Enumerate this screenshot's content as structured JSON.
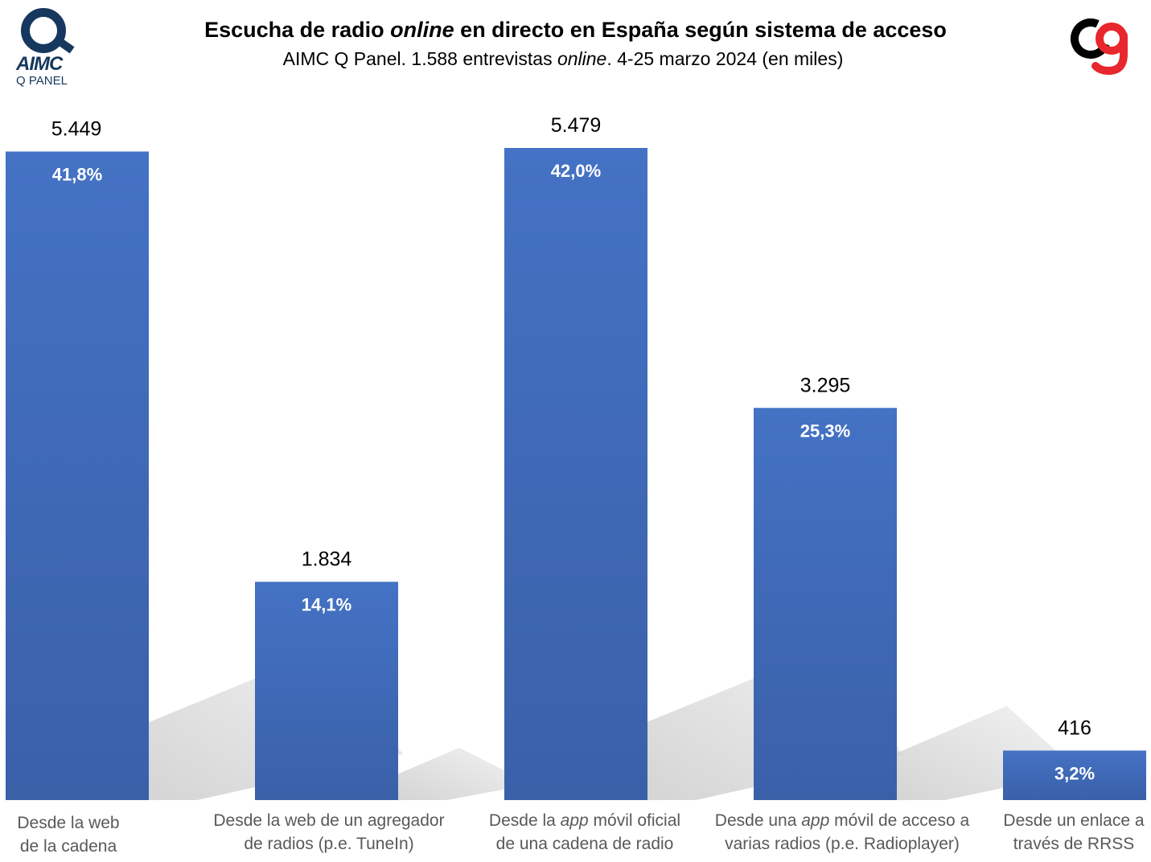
{
  "header": {
    "title_pre": "Escucha de radio ",
    "title_em": "online",
    "title_post": " en directo en España según sistema de acceso",
    "subtitle_pre": "AIMC Q Panel. 1.588 entrevistas ",
    "subtitle_em": "online",
    "subtitle_post": ". 4-25 marzo 2024 (en miles)"
  },
  "logos": {
    "left_word": "AIMC",
    "left_sub": "Q PANEL"
  },
  "colors": {
    "bar": "#4472c4",
    "bar_dark": "#3a60a8",
    "shadow": "#d0d0d0",
    "logo_navy": "#17385e",
    "logo_red": "#e8262d"
  },
  "chart_data": {
    "type": "bar",
    "categories": [
      [
        "Desde la web",
        "de la cadena"
      ],
      [
        "Desde la web de un agregador",
        "de radios (p.e. TuneIn)"
      ],
      [
        "Desde la app móvil oficial",
        "de una cadena de radio"
      ],
      [
        "Desde una app móvil de acceso a",
        "varias radios (p.e. Radioplayer)"
      ],
      [
        "Desde un enlace a",
        "través de RRSS"
      ]
    ],
    "values": [
      5449,
      1834,
      5479,
      3295,
      416
    ],
    "value_labels": [
      "5.449",
      "1.834",
      "5.479",
      "3.295",
      "416"
    ],
    "percent_labels": [
      "41,8%",
      "14,1%",
      "42,0%",
      "25,3%",
      "3,2%"
    ],
    "title": "Escucha de radio online en directo en España según sistema de acceso",
    "xlabel": "",
    "ylabel": "",
    "ylim": [
      0,
      5479
    ],
    "grid": false,
    "legend": "none"
  }
}
